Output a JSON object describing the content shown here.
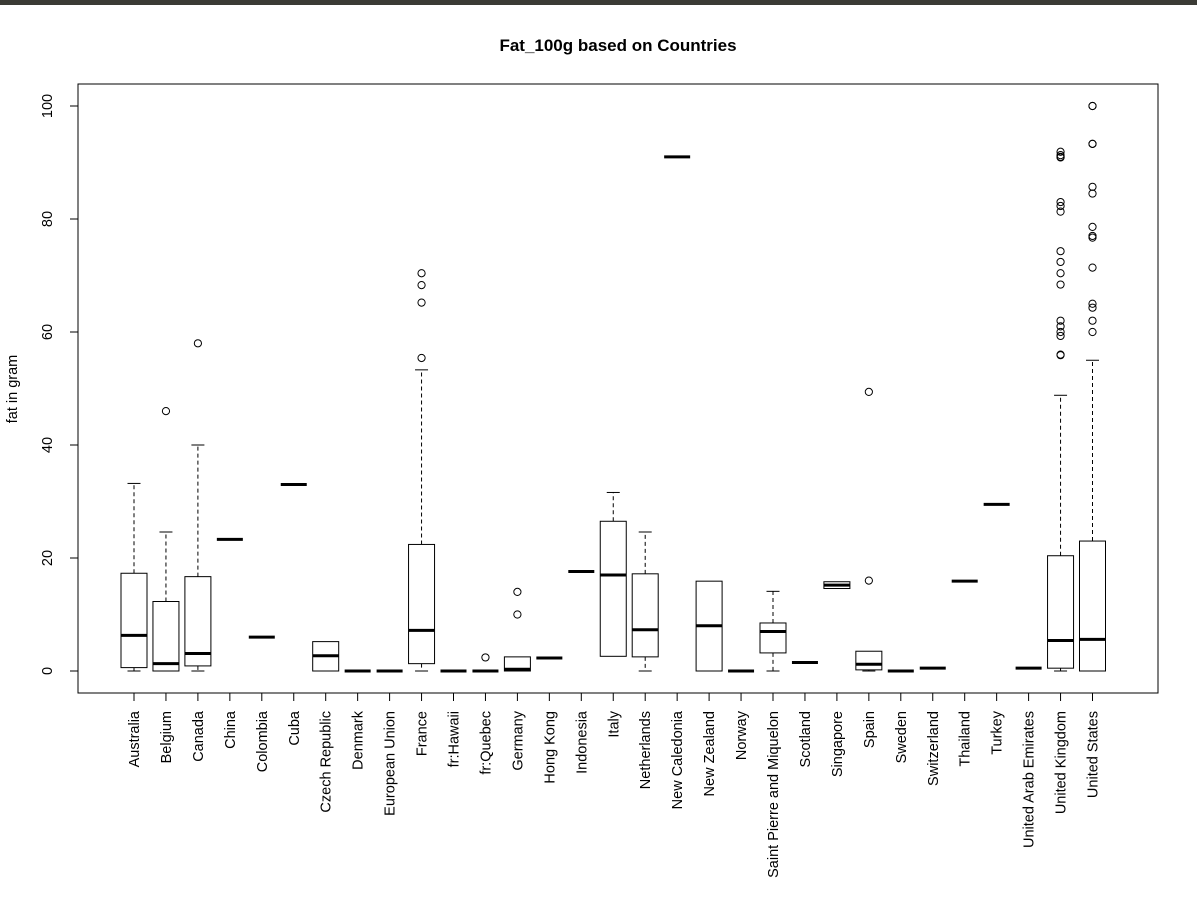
{
  "chart_data": {
    "type": "boxplot",
    "title": "Fat_100g based on Countries",
    "xlabel": "",
    "ylabel": "fat in gram",
    "ylim": [
      -4,
      104
    ],
    "yticks": [
      0,
      20,
      40,
      60,
      80,
      100
    ],
    "grid": false,
    "categories": [
      "Australia",
      "Belgium",
      "Canada",
      "China",
      "Colombia",
      "Cuba",
      "Czech Republic",
      "Denmark",
      "European Union",
      "France",
      "fr:Hawaii",
      "fr:Quebec",
      "Germany",
      "Hong Kong",
      "Indonesia",
      "Italy",
      "Netherlands",
      "New Caledonia",
      "New Zealand",
      "Norway",
      "Saint Pierre and Miquelon",
      "Scotland",
      "Singapore",
      "Spain",
      "Sweden",
      "Switzerland",
      "Thailand",
      "Turkey",
      "United Arab Emirates",
      "United Kingdom",
      "United States"
    ],
    "boxes": [
      {
        "min": 0,
        "q1": 0.6,
        "median": 6.3,
        "q3": 17.3,
        "max": 33.2,
        "outliers": []
      },
      {
        "min": 0,
        "q1": 0,
        "median": 1.3,
        "q3": 12.3,
        "max": 24.6,
        "outliers": [
          46
        ]
      },
      {
        "min": 0,
        "q1": 0.9,
        "median": 3.1,
        "q3": 16.7,
        "max": 40,
        "outliers": [
          58
        ]
      },
      {
        "min": 23.3,
        "q1": 23.3,
        "median": 23.3,
        "q3": 23.3,
        "max": 23.3,
        "outliers": []
      },
      {
        "min": 6,
        "q1": 6,
        "median": 6,
        "q3": 6,
        "max": 6,
        "outliers": []
      },
      {
        "min": 33,
        "q1": 33,
        "median": 33,
        "q3": 33,
        "max": 33,
        "outliers": []
      },
      {
        "min": 0,
        "q1": 0,
        "median": 2.7,
        "q3": 5.2,
        "max": 5.2,
        "outliers": []
      },
      {
        "min": 0,
        "q1": 0,
        "median": 0,
        "q3": 0,
        "max": 0,
        "outliers": []
      },
      {
        "min": 0,
        "q1": 0,
        "median": 0,
        "q3": 0,
        "max": 0,
        "outliers": []
      },
      {
        "min": 0,
        "q1": 1.3,
        "median": 7.2,
        "q3": 22.4,
        "max": 53.3,
        "outliers": [
          55.4,
          65.2,
          68.3,
          70.4
        ]
      },
      {
        "min": 0,
        "q1": 0,
        "median": 0,
        "q3": 0,
        "max": 0,
        "outliers": []
      },
      {
        "min": 0,
        "q1": 0,
        "median": 0,
        "q3": 0,
        "max": 0,
        "outliers": [
          2.4
        ]
      },
      {
        "min": 0,
        "q1": 0,
        "median": 0.3,
        "q3": 2.5,
        "max": 2.5,
        "outliers": [
          10,
          14
        ]
      },
      {
        "min": 2.3,
        "q1": 2.3,
        "median": 2.3,
        "q3": 2.3,
        "max": 2.3,
        "outliers": []
      },
      {
        "min": 17.6,
        "q1": 17.6,
        "median": 17.6,
        "q3": 17.6,
        "max": 17.6,
        "outliers": []
      },
      {
        "min": 2.6,
        "q1": 2.6,
        "median": 17,
        "q3": 26.5,
        "max": 31.6,
        "outliers": []
      },
      {
        "min": 0,
        "q1": 2.5,
        "median": 7.3,
        "q3": 17.2,
        "max": 24.6,
        "outliers": []
      },
      {
        "min": 91,
        "q1": 91,
        "median": 91,
        "q3": 91,
        "max": 91,
        "outliers": []
      },
      {
        "min": 0,
        "q1": 0,
        "median": 8,
        "q3": 15.9,
        "max": 15.9,
        "outliers": []
      },
      {
        "min": 0,
        "q1": 0,
        "median": 0,
        "q3": 0,
        "max": 0,
        "outliers": []
      },
      {
        "min": 0,
        "q1": 3.2,
        "median": 7,
        "q3": 8.5,
        "max": 14.1,
        "outliers": []
      },
      {
        "min": 1.5,
        "q1": 1.5,
        "median": 1.5,
        "q3": 1.5,
        "max": 1.5,
        "outliers": []
      },
      {
        "min": 14.6,
        "q1": 14.6,
        "median": 15.2,
        "q3": 15.8,
        "max": 15.8,
        "outliers": []
      },
      {
        "min": 0,
        "q1": 0.2,
        "median": 1.2,
        "q3": 3.5,
        "max": 3.5,
        "outliers": [
          16,
          49.4
        ]
      },
      {
        "min": 0,
        "q1": 0,
        "median": 0,
        "q3": 0,
        "max": 0,
        "outliers": []
      },
      {
        "min": 0.5,
        "q1": 0.5,
        "median": 0.5,
        "q3": 0.5,
        "max": 0.5,
        "outliers": []
      },
      {
        "min": 15.9,
        "q1": 15.9,
        "median": 15.9,
        "q3": 15.9,
        "max": 15.9,
        "outliers": []
      },
      {
        "min": 29.5,
        "q1": 29.5,
        "median": 29.5,
        "q3": 29.5,
        "max": 29.5,
        "outliers": []
      },
      {
        "min": 0.5,
        "q1": 0.5,
        "median": 0.5,
        "q3": 0.5,
        "max": 0.5,
        "outliers": []
      },
      {
        "min": 0,
        "q1": 0.5,
        "median": 5.4,
        "q3": 20.4,
        "max": 48.8,
        "outliers": [
          55.9,
          56,
          59.3,
          60,
          61,
          62,
          68.4,
          70.4,
          72.4,
          74.3,
          81.3,
          82.3,
          83,
          90.9,
          91,
          91.3,
          91.9
        ]
      },
      {
        "min": 0,
        "q1": 0,
        "median": 5.6,
        "q3": 23,
        "max": 55,
        "outliers": [
          60,
          62,
          64.3,
          65,
          71.4,
          76.7,
          77,
          78.6,
          84.5,
          85.7,
          93.3,
          93.3,
          100,
          100
        ]
      }
    ]
  }
}
